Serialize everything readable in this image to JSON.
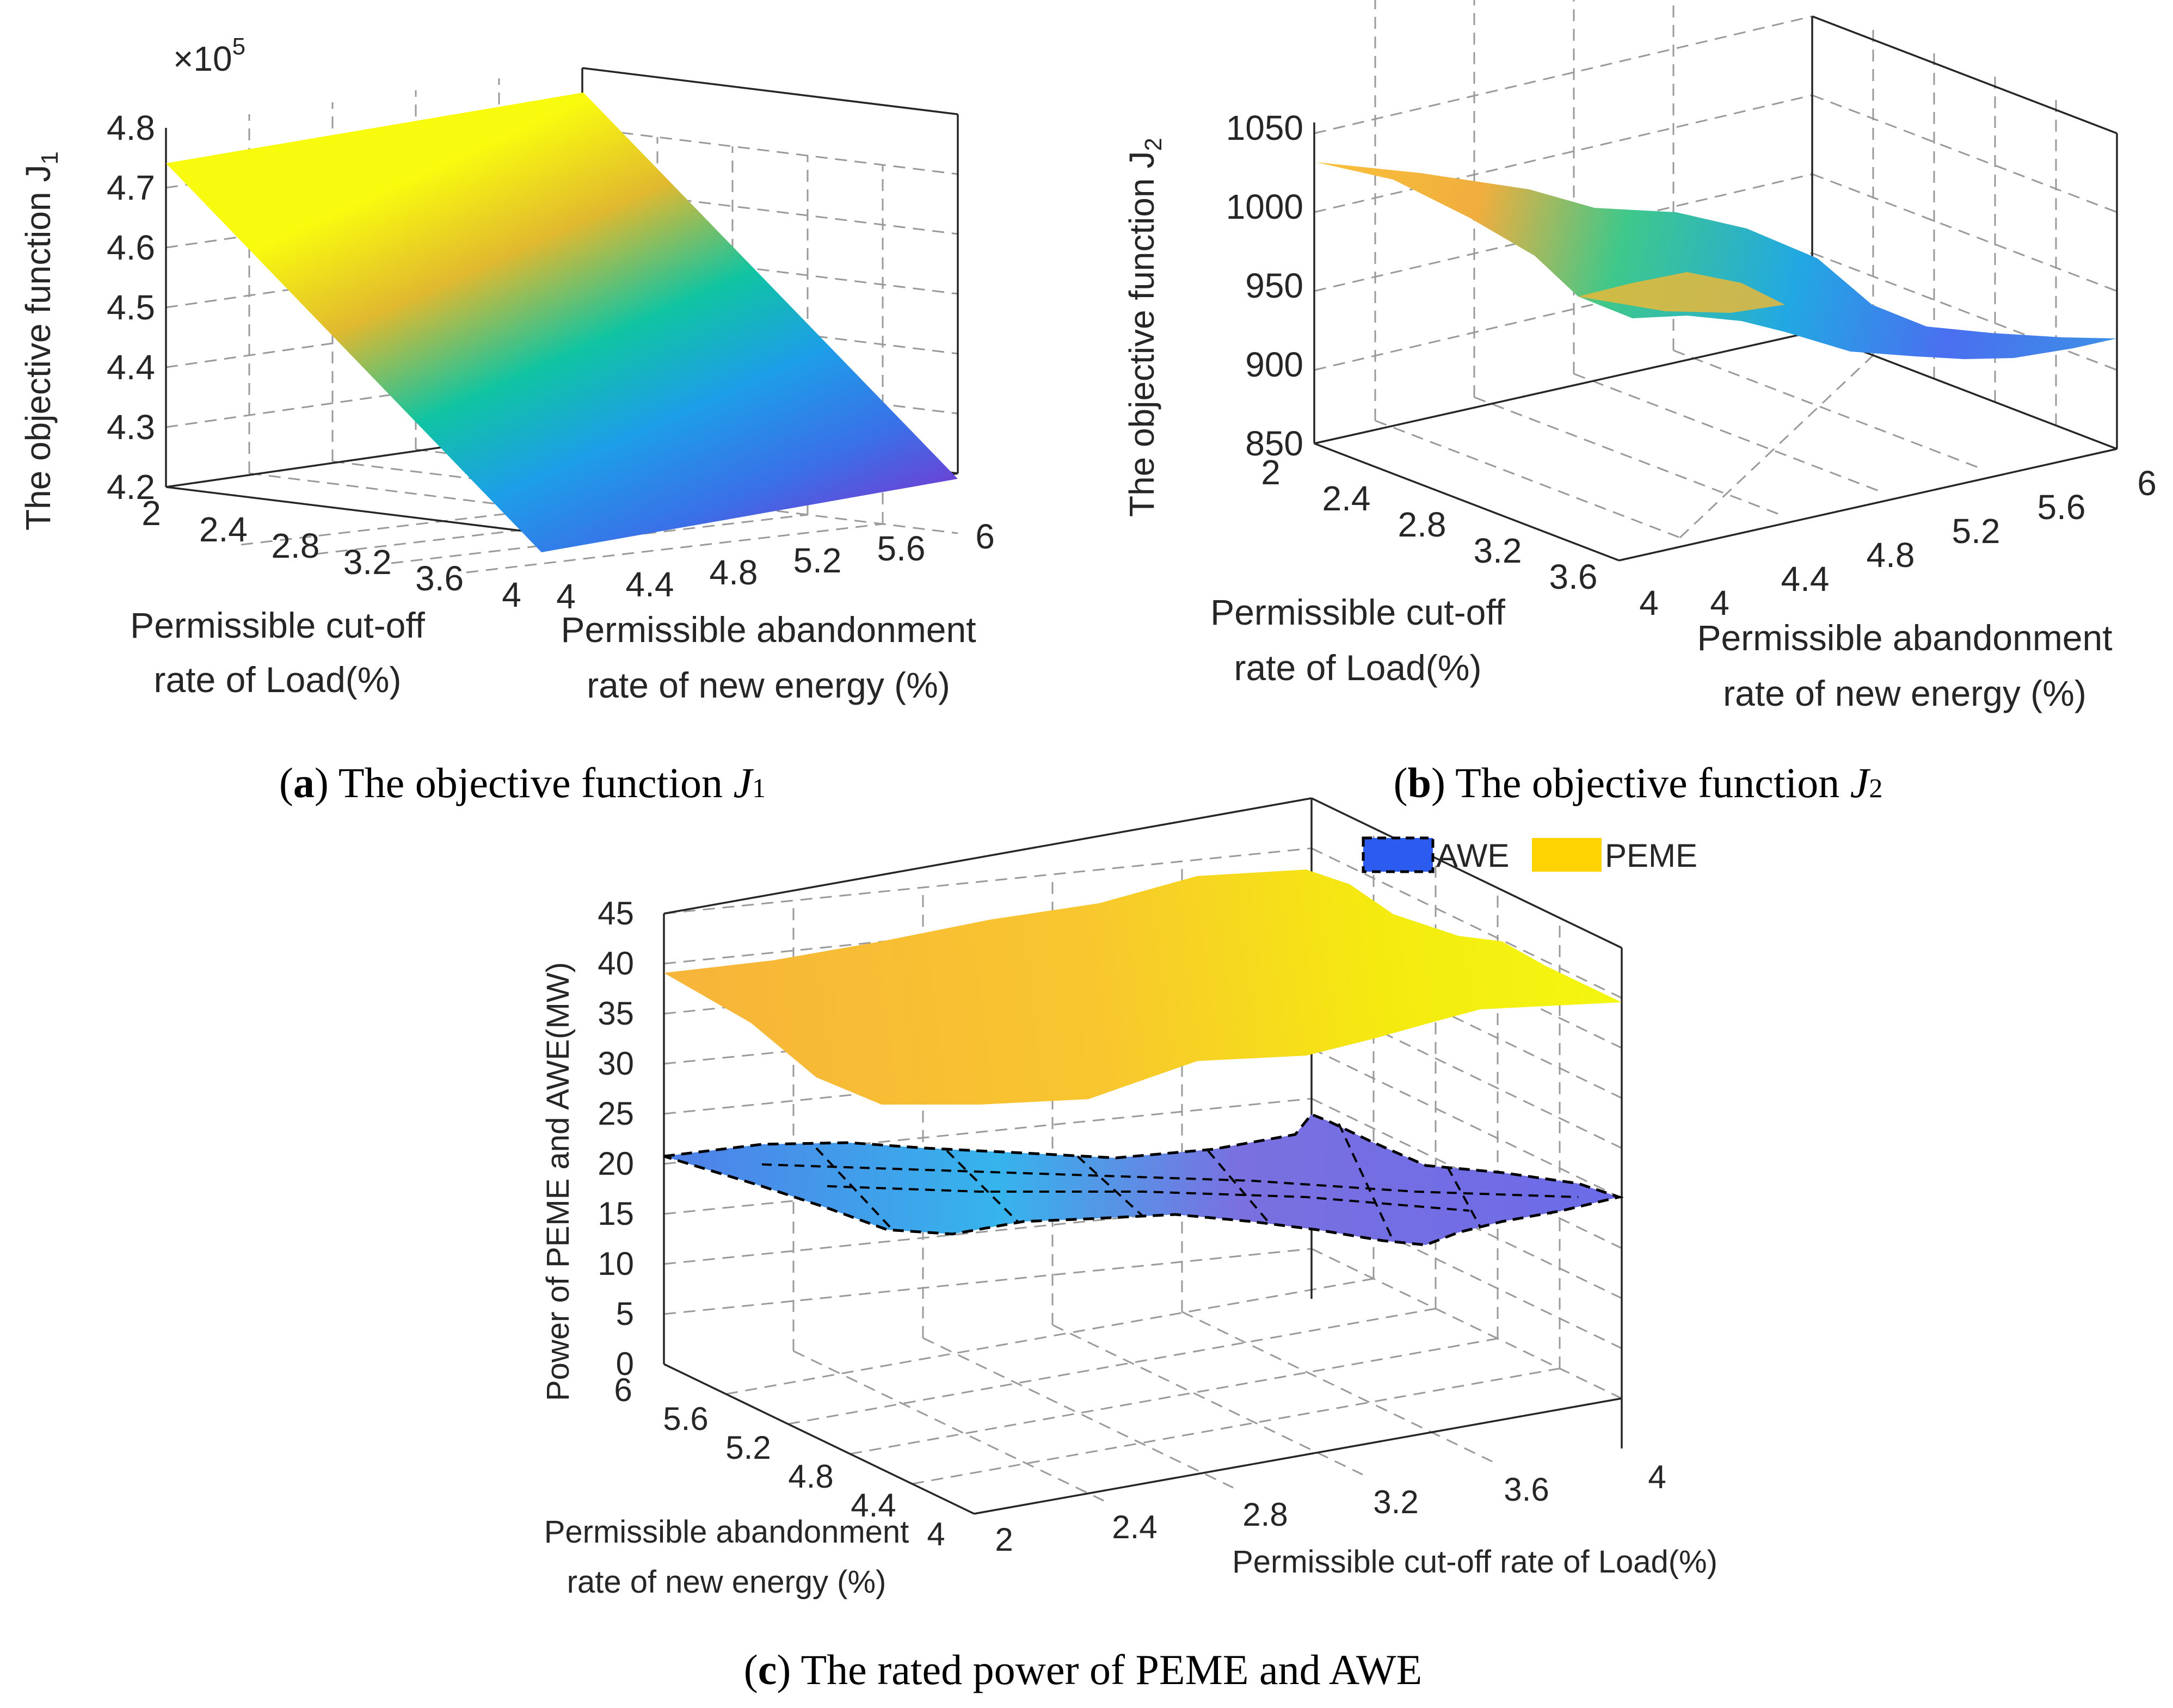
{
  "chart_data": [
    {
      "type": "surface3d",
      "panel": "a",
      "caption": {
        "letter": "a",
        "text": "The objective function ",
        "var": "J",
        "sub": "1"
      },
      "zlabel": "The objective function J",
      "zlabel_sub": "1",
      "z_multiplier_base": "×10",
      "z_multiplier_exp": "5",
      "x_label_lines": [
        "Permissible cut-off",
        "rate of Load(%)"
      ],
      "y_label_lines": [
        "Permissible abandonment",
        "rate of new energy (%)"
      ],
      "x_ticks": [
        "2",
        "2.4",
        "2.8",
        "3.2",
        "3.6",
        "4"
      ],
      "y_ticks": [
        "4",
        "4.4",
        "4.8",
        "5.2",
        "5.6",
        "6"
      ],
      "z_ticks": [
        "4.2",
        "4.3",
        "4.4",
        "4.5",
        "4.6",
        "4.7",
        "4.8"
      ],
      "zlim": [
        4.2,
        4.8
      ],
      "colormap": "parula",
      "surface_corners": [
        {
          "x": 2,
          "y": 4,
          "z": 4.73
        },
        {
          "x": 2,
          "y": 6,
          "z": 4.85
        },
        {
          "x": 4,
          "y": 6,
          "z": 4.19
        },
        {
          "x": 4,
          "y": 4,
          "z": 4.08
        }
      ]
    },
    {
      "type": "surface3d",
      "panel": "b",
      "caption": {
        "letter": "b",
        "text": "The objective function ",
        "var": "J",
        "sub": "2"
      },
      "zlabel": "The objective function J",
      "zlabel_sub": "2",
      "x_label_lines": [
        "Permissible cut-off",
        "rate of Load(%)"
      ],
      "y_label_lines": [
        "Permissible abandonment",
        "rate of new energy (%)"
      ],
      "x_ticks": [
        "2",
        "2.4",
        "2.8",
        "3.2",
        "3.6",
        "4"
      ],
      "y_ticks": [
        "4",
        "4.4",
        "4.8",
        "5.2",
        "5.6",
        "6"
      ],
      "z_ticks": [
        "850",
        "900",
        "950",
        "1000",
        "1050"
      ],
      "zlim": [
        850,
        1050
      ],
      "colormap": "parula",
      "surface_corners": [
        {
          "x": 2,
          "y": 4,
          "z": 1025
        },
        {
          "x": 2,
          "y": 6,
          "z": 990
        },
        {
          "x": 4,
          "y": 6,
          "z": 905
        },
        {
          "x": 4,
          "y": 4,
          "z": 940
        }
      ]
    },
    {
      "type": "surface3d",
      "panel": "c",
      "caption": {
        "letter": "c",
        "text": "The rated power of PEME and AWE"
      },
      "zlabel": "Power of PEME and AWE(MW)",
      "x_label": "Permissible cut-off rate of Load(%)",
      "y_label_lines": [
        "Permissible abandonment",
        "rate of new energy (%)"
      ],
      "x_ticks": [
        "2",
        "2.4",
        "2.8",
        "3.2",
        "3.6",
        "4"
      ],
      "y_ticks": [
        "4",
        "4.4",
        "4.8",
        "5.2",
        "5.6",
        "6"
      ],
      "z_ticks": [
        "0",
        "5",
        "10",
        "15",
        "20",
        "25",
        "30",
        "35",
        "40",
        "45"
      ],
      "zlim": [
        0,
        45
      ],
      "legend_position": "top",
      "series": [
        {
          "name": "AWE",
          "color": "#2c5bf0",
          "z_approx": [
            20,
            15,
            13,
            16,
            21
          ]
        },
        {
          "name": "PEME",
          "color": "#ffd300",
          "z_approx": [
            38,
            27,
            34,
            45,
            36
          ]
        }
      ]
    }
  ]
}
